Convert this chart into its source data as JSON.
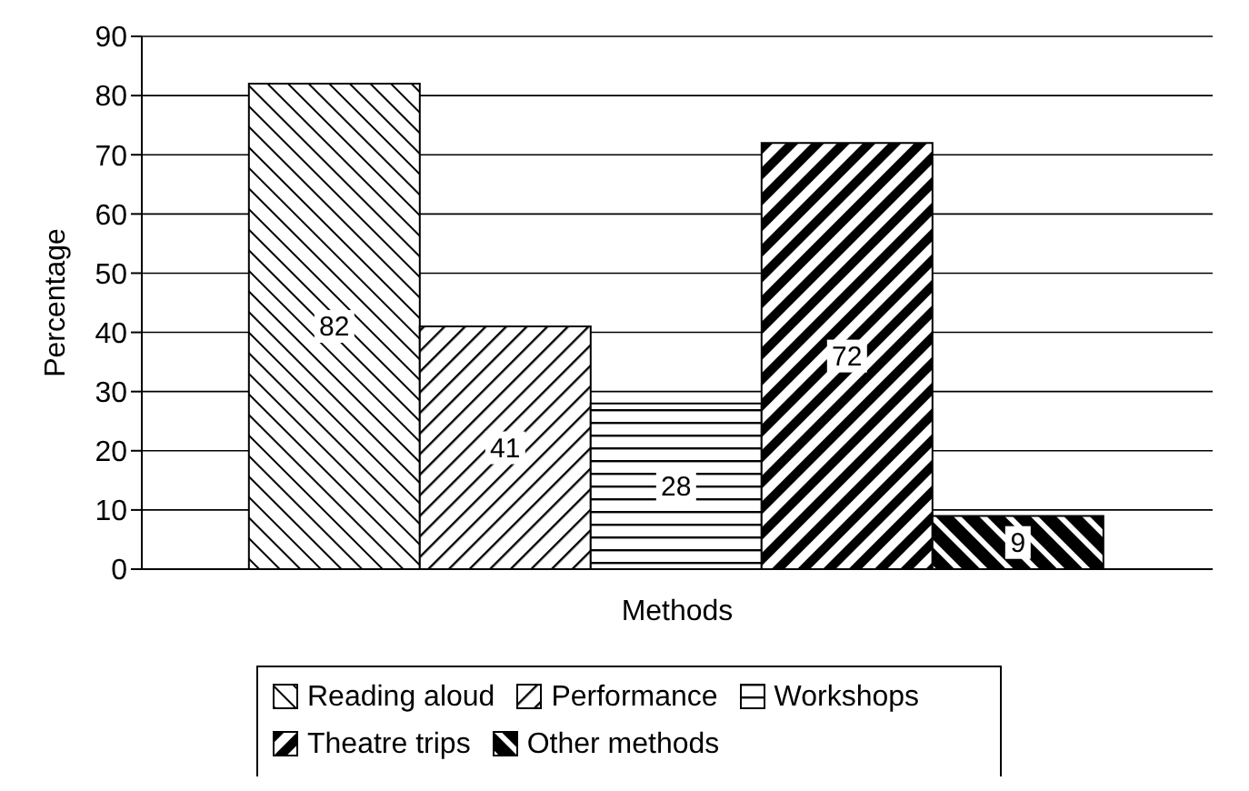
{
  "chart_data": {
    "type": "bar",
    "xlabel": "Methods",
    "ylabel": "Percentage",
    "categories": [
      null
    ],
    "series": [
      {
        "name": "Reading aloud",
        "color": "#000000",
        "values": [
          82
        ]
      },
      {
        "name": "Performance",
        "color": "#000000",
        "values": [
          41
        ]
      },
      {
        "name": "Workshops",
        "color": "#000000",
        "values": [
          28
        ]
      },
      {
        "name": "Theatre trips",
        "color": "#000000",
        "values": [
          72
        ]
      },
      {
        "name": "Other methods",
        "color": "#000000",
        "values": [
          9
        ]
      }
    ],
    "ylim": [
      0,
      90
    ],
    "yticks": [
      0,
      10,
      20,
      30,
      40,
      50,
      60,
      70,
      80,
      90
    ],
    "grid": "y",
    "legend": "bottom",
    "data_labels": true
  }
}
